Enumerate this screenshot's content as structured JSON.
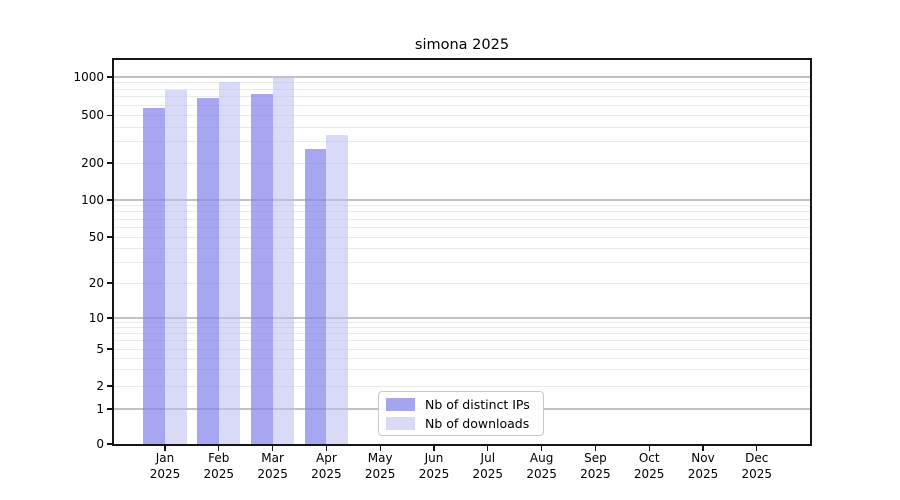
{
  "title": "simona 2025",
  "legend": {
    "items": [
      {
        "key": "distinct-ips",
        "label": "Nb of distinct IPs",
        "color": "#a6a6f0"
      },
      {
        "key": "downloads",
        "label": "Nb of downloads",
        "color": "#d9d9f8"
      }
    ]
  },
  "chart_data": {
    "type": "bar",
    "title": "simona 2025",
    "categories": [
      "Jan 2025",
      "Feb 2025",
      "Mar 2025",
      "Apr 2025",
      "May 2025",
      "Jun 2025",
      "Jul 2025",
      "Aug 2025",
      "Sep 2025",
      "Oct 2025",
      "Nov 2025",
      "Dec 2025"
    ],
    "series": [
      {
        "name": "Nb of distinct IPs",
        "color_solid": "#a6a6f0",
        "color_rgba": "rgba(132,132,235,0.72)",
        "values": [
          570,
          690,
          730,
          260,
          null,
          null,
          null,
          null,
          null,
          null,
          null,
          null
        ]
      },
      {
        "name": "Nb of downloads",
        "color_solid": "#d9d9f8",
        "color_rgba": "rgba(186,186,243,0.55)",
        "values": [
          790,
          920,
          1000,
          345,
          null,
          null,
          null,
          null,
          null,
          null,
          null,
          null
        ]
      }
    ],
    "y_ticks": [
      0,
      1,
      2,
      5,
      10,
      20,
      50,
      100,
      200,
      500,
      1000
    ],
    "y_scale": "symlog",
    "ylim": [
      0,
      1400
    ],
    "xlabel": "",
    "ylabel": "",
    "grid": "both",
    "legend_position": "lower center"
  },
  "colors": {
    "grid_major": "#c2c2c2",
    "grid_minor": "#e9e9e9",
    "frame": "#151515",
    "background": "#ffffff"
  }
}
